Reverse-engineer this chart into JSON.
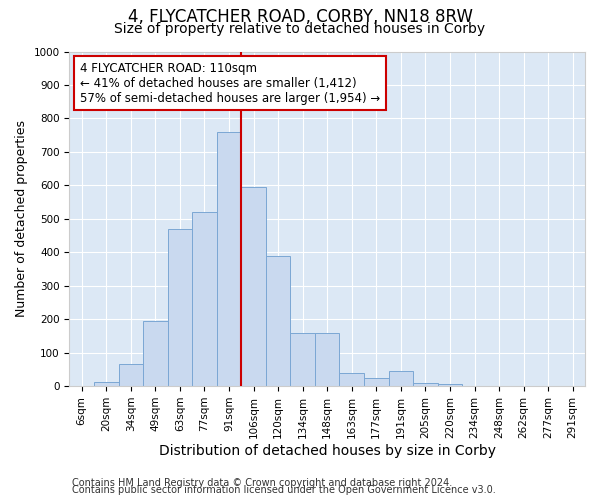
{
  "title": "4, FLYCATCHER ROAD, CORBY, NN18 8RW",
  "subtitle": "Size of property relative to detached houses in Corby",
  "xlabel": "Distribution of detached houses by size in Corby",
  "ylabel": "Number of detached properties",
  "bar_labels": [
    "6sqm",
    "20sqm",
    "34sqm",
    "49sqm",
    "63sqm",
    "77sqm",
    "91sqm",
    "106sqm",
    "120sqm",
    "134sqm",
    "148sqm",
    "163sqm",
    "177sqm",
    "191sqm",
    "205sqm",
    "220sqm",
    "234sqm",
    "248sqm",
    "262sqm",
    "277sqm",
    "291sqm"
  ],
  "bar_heights": [
    0,
    13,
    65,
    195,
    470,
    520,
    760,
    595,
    390,
    160,
    160,
    40,
    25,
    45,
    8,
    5,
    0,
    0,
    0,
    0,
    0
  ],
  "bar_color": "#c9d9ef",
  "bar_edgecolor": "#7ba7d4",
  "vline_color": "#cc0000",
  "annotation_text": "4 FLYCATCHER ROAD: 110sqm\n← 41% of detached houses are smaller (1,412)\n57% of semi-detached houses are larger (1,954) →",
  "annotation_box_edgecolor": "#cc0000",
  "annotation_box_facecolor": "#ffffff",
  "ylim": [
    0,
    1000
  ],
  "yticks": [
    0,
    100,
    200,
    300,
    400,
    500,
    600,
    700,
    800,
    900,
    1000
  ],
  "footer_line1": "Contains HM Land Registry data © Crown copyright and database right 2024.",
  "footer_line2": "Contains public sector information licensed under the Open Government Licence v3.0.",
  "bg_color": "#ffffff",
  "plot_bg_color": "#dce8f5",
  "grid_color": "#ffffff",
  "title_fontsize": 12,
  "subtitle_fontsize": 10,
  "xlabel_fontsize": 10,
  "ylabel_fontsize": 9,
  "tick_fontsize": 7.5,
  "footer_fontsize": 7
}
